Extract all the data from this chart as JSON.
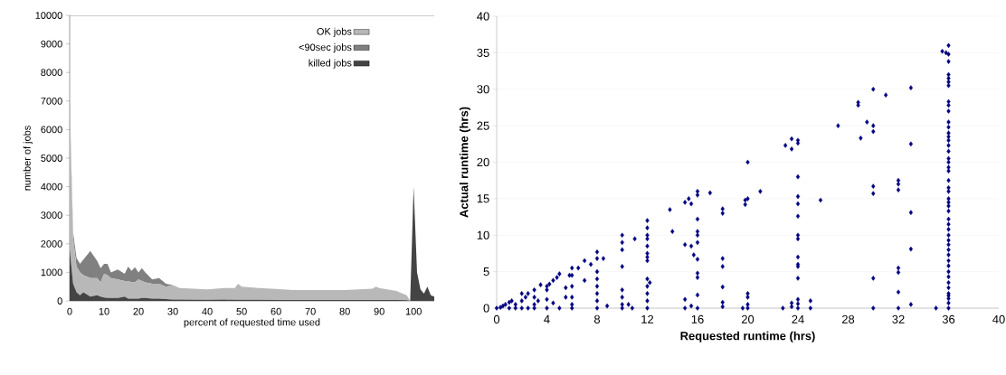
{
  "chart_data": [
    {
      "type": "area",
      "stacked": true,
      "xlabel": "percent of requested time used",
      "ylabel": "number of jobs",
      "legend": "top right",
      "xlim": [
        0,
        106
      ],
      "ylim": [
        0,
        10000
      ],
      "xticks": [
        0,
        10,
        20,
        30,
        40,
        50,
        60,
        70,
        80,
        90,
        100
      ],
      "yticks": [
        0,
        1000,
        2000,
        3000,
        4000,
        5000,
        6000,
        7000,
        8000,
        9000,
        10000
      ],
      "x": [
        0,
        1,
        2,
        3,
        4,
        6,
        8,
        9,
        10,
        11,
        12,
        14,
        16,
        17,
        18,
        19,
        20,
        21,
        22,
        24,
        26,
        28,
        30,
        32,
        40,
        45,
        48,
        49,
        50,
        55,
        60,
        65,
        70,
        80,
        88,
        89,
        90,
        95,
        98,
        99,
        100,
        101,
        102,
        103,
        104,
        105,
        106
      ],
      "series": [
        {
          "name": "killed jobs",
          "color": "#444444",
          "values": [
            1800,
            600,
            300,
            200,
            300,
            150,
            200,
            150,
            120,
            100,
            100,
            100,
            150,
            80,
            80,
            80,
            80,
            100,
            100,
            80,
            80,
            60,
            50,
            50,
            40,
            50,
            40,
            40,
            40,
            40,
            30,
            30,
            30,
            30,
            30,
            30,
            30,
            30,
            20,
            0,
            4000,
            1000,
            400,
            250,
            500,
            200,
            150
          ]
        },
        {
          "name": "OK jobs",
          "color": "#b8b8b8",
          "values": [
            5000,
            1600,
            900,
            800,
            600,
            650,
            600,
            500,
            830,
            800,
            700,
            650,
            550,
            620,
            570,
            570,
            670,
            600,
            550,
            520,
            520,
            440,
            500,
            400,
            360,
            400,
            410,
            560,
            460,
            410,
            390,
            350,
            350,
            350,
            400,
            470,
            420,
            320,
            180,
            0,
            0,
            0,
            0,
            0,
            0,
            0,
            0
          ]
        },
        {
          "name": "<90sec jobs",
          "color": "#808080",
          "values": [
            200,
            200,
            300,
            300,
            550,
            950,
            600,
            500,
            350,
            400,
            200,
            350,
            250,
            500,
            400,
            530,
            250,
            450,
            350,
            150,
            200,
            100,
            0,
            0,
            0,
            0,
            0,
            0,
            0,
            0,
            0,
            0,
            0,
            0,
            0,
            0,
            0,
            0,
            0,
            0,
            0,
            0,
            0,
            0,
            0,
            0,
            0
          ]
        }
      ]
    },
    {
      "type": "scatter",
      "xlabel": "Requested runtime (hrs)",
      "ylabel": "Actual runtime (hrs)",
      "marker": "diamond",
      "color": "#000080",
      "grid": "y",
      "xlim": [
        0,
        40
      ],
      "ylim": [
        0,
        40
      ],
      "xticks": [
        0,
        4,
        8,
        12,
        16,
        20,
        24,
        28,
        32,
        36,
        40
      ],
      "yticks": [
        0,
        5,
        10,
        15,
        20,
        25,
        30,
        35,
        40
      ],
      "x": [
        0,
        0.3,
        0.5,
        0.7,
        1,
        1,
        1.2,
        1.5,
        1.5,
        2,
        2,
        2,
        2.3,
        2.5,
        2.5,
        3,
        3,
        3,
        3,
        3.5,
        3.3,
        4,
        4,
        4,
        4,
        4.2,
        4.5,
        4.5,
        4.8,
        5,
        5,
        5.5,
        5.5,
        5.8,
        6,
        6,
        6,
        6,
        6,
        6,
        6.5,
        7,
        7,
        7.5,
        8,
        8,
        8,
        8,
        8,
        8,
        8,
        8,
        8.5,
        8.8,
        10,
        10,
        10,
        10,
        10,
        10,
        10,
        10,
        10.5,
        10.8,
        11,
        12,
        12,
        12,
        12,
        12,
        12,
        12,
        12,
        12,
        12,
        12,
        12,
        12,
        12.2,
        13.8,
        14,
        15,
        15.3,
        15.5,
        15,
        15,
        15,
        15.5,
        15.5,
        15.7,
        16,
        16,
        16,
        16,
        16,
        16,
        16,
        16,
        16,
        16,
        16,
        17,
        18,
        18,
        18,
        18,
        18,
        18,
        18,
        19.8,
        19.8,
        20,
        20,
        20,
        20,
        20,
        20,
        19.6,
        21,
        22.8,
        23,
        23.5,
        23.5,
        24,
        24,
        24,
        24,
        24,
        24,
        24,
        24,
        24,
        24,
        24,
        24,
        24,
        24,
        24,
        23.5,
        23.5,
        25,
        25,
        25.8,
        27.2,
        28.8,
        28.8,
        29,
        29.5,
        30,
        30,
        30,
        30,
        30,
        30,
        30,
        31,
        32,
        32,
        32,
        32,
        32,
        32,
        32,
        33,
        33,
        33,
        33,
        33,
        35,
        35.5,
        35.8,
        36,
        36,
        36,
        36,
        36,
        36,
        36,
        36,
        36,
        36,
        36,
        36,
        36,
        36,
        36,
        36,
        36,
        36,
        36,
        36,
        36,
        36,
        36,
        36,
        36,
        36,
        36,
        36,
        36,
        36,
        36,
        36,
        36,
        36,
        36,
        36,
        36,
        36,
        36,
        36,
        36,
        36,
        36,
        36,
        36,
        36,
        36
      ],
      "values": [
        0,
        0.1,
        0.3,
        0.5,
        0.8,
        0,
        1,
        0.5,
        0,
        2,
        1,
        0,
        1.5,
        2,
        0,
        2.5,
        1.5,
        0.5,
        0,
        3.2,
        1,
        3,
        2.5,
        1.2,
        0,
        3.3,
        3.8,
        0.7,
        4.2,
        4.7,
        0,
        2.8,
        1.5,
        4.5,
        5.5,
        4.5,
        3,
        1.5,
        0.5,
        0,
        5.5,
        6.5,
        3.8,
        6,
        7.7,
        6.8,
        5,
        4,
        3,
        2,
        1,
        0,
        6.8,
        0.3,
        10,
        9,
        8,
        5.7,
        2.5,
        1.5,
        0.5,
        0,
        0.5,
        0,
        9.5,
        12,
        11,
        10,
        9.5,
        8.5,
        7.5,
        7,
        6.5,
        4,
        3,
        2,
        1,
        0,
        3.5,
        13.5,
        10.5,
        14.5,
        15,
        14.3,
        8.7,
        1.2,
        0,
        8.5,
        0.3,
        7.3,
        16,
        15.5,
        12.2,
        10.5,
        10,
        9,
        6.7,
        4.8,
        4.2,
        1.8,
        0,
        15.8,
        13.6,
        13,
        6.8,
        5.7,
        2.9,
        0.8,
        0.2,
        14.8,
        14.2,
        20,
        15,
        2,
        1.5,
        0.5,
        0,
        0,
        16,
        0,
        22.3,
        21.8,
        23.2,
        23,
        22.6,
        18,
        15.3,
        14.3,
        12.6,
        10,
        9.5,
        7,
        6,
        5.7,
        4.1,
        1.2,
        0.6,
        0,
        0.7,
        0.2,
        1,
        0,
        14.8,
        25,
        28.2,
        27.8,
        23.3,
        25.5,
        30,
        25,
        24.2,
        16.7,
        15.7,
        4.1,
        0,
        29.2,
        17.5,
        17,
        16.2,
        5.5,
        4.9,
        2.2,
        0,
        30.2,
        22.5,
        13.1,
        8.1,
        0.5,
        0,
        35.2,
        35,
        36,
        34.8,
        33.8,
        32,
        31.5,
        31,
        30.5,
        28.3,
        27.8,
        27,
        25.5,
        24.8,
        24,
        23.5,
        23,
        22.3,
        21.5,
        20.5,
        20,
        19.3,
        18.8,
        17.5,
        16.5,
        16,
        15,
        14.5,
        14,
        13.3,
        12.2,
        11.5,
        10.8,
        10,
        9.3,
        8.7,
        8,
        7.3,
        6.5,
        5.8,
        5,
        4.3,
        3.5,
        2.8,
        2,
        1.3,
        0.7,
        0,
        1.7
      ]
    }
  ]
}
